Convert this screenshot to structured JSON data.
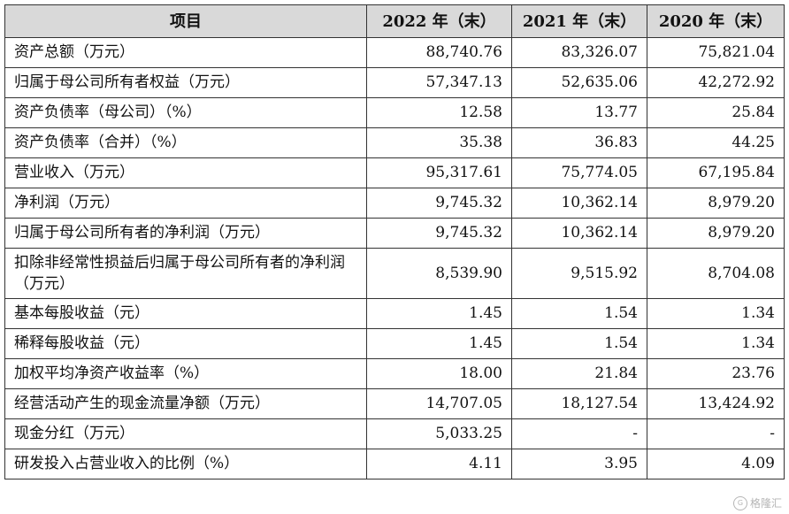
{
  "table": {
    "headers": [
      "项目",
      "2022 年（末）",
      "2021 年（末）",
      "2020 年（末）"
    ],
    "rows": [
      {
        "label": "资产总额（万元）",
        "v2022": "88,740.76",
        "v2021": "83,326.07",
        "v2020": "75,821.04"
      },
      {
        "label": "归属于母公司所有者权益（万元）",
        "v2022": "57,347.13",
        "v2021": "52,635.06",
        "v2020": "42,272.92"
      },
      {
        "label": "资产负债率（母公司）（%）",
        "v2022": "12.58",
        "v2021": "13.77",
        "v2020": "25.84"
      },
      {
        "label": "资产负债率（合并）（%）",
        "v2022": "35.38",
        "v2021": "36.83",
        "v2020": "44.25"
      },
      {
        "label": "营业收入（万元）",
        "v2022": "95,317.61",
        "v2021": "75,774.05",
        "v2020": "67,195.84"
      },
      {
        "label": "净利润（万元）",
        "v2022": "9,745.32",
        "v2021": "10,362.14",
        "v2020": "8,979.20"
      },
      {
        "label": "归属于母公司所有者的净利润（万元）",
        "v2022": "9,745.32",
        "v2021": "10,362.14",
        "v2020": "8,979.20"
      },
      {
        "label": "扣除非经常性损益后归属于母公司所有者的净利润（万元）",
        "v2022": "8,539.90",
        "v2021": "9,515.92",
        "v2020": "8,704.08"
      },
      {
        "label": "基本每股收益（元）",
        "v2022": "1.45",
        "v2021": "1.54",
        "v2020": "1.34"
      },
      {
        "label": "稀释每股收益（元）",
        "v2022": "1.45",
        "v2021": "1.54",
        "v2020": "1.34"
      },
      {
        "label": "加权平均净资产收益率（%）",
        "v2022": "18.00",
        "v2021": "21.84",
        "v2020": "23.76"
      },
      {
        "label": "经营活动产生的现金流量净额（万元）",
        "v2022": "14,707.05",
        "v2021": "18,127.54",
        "v2020": "13,424.92"
      },
      {
        "label": "现金分红（万元）",
        "v2022": "5,033.25",
        "v2021": "-",
        "v2020": "-"
      },
      {
        "label": "研发投入占营业收入的比例（%）",
        "v2022": "4.11",
        "v2021": "3.95",
        "v2020": "4.09"
      }
    ]
  },
  "watermark": {
    "text": "格隆汇",
    "logo": "G"
  }
}
